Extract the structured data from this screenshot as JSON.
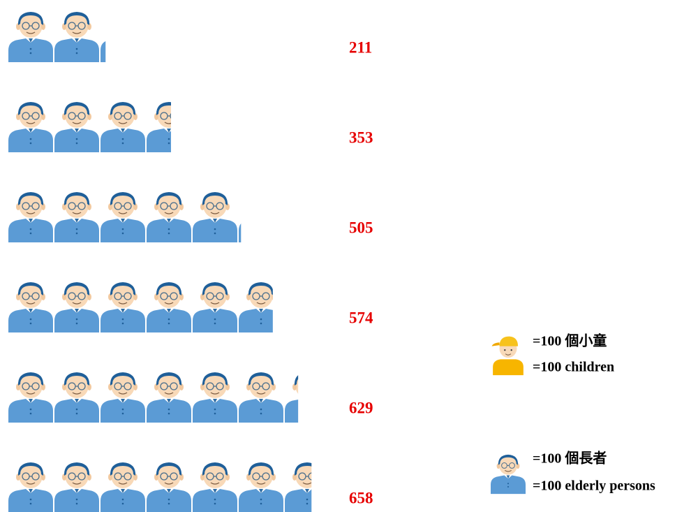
{
  "chart_data": {
    "type": "pictograph",
    "categories": [
      null,
      null,
      null,
      null,
      null,
      null
    ],
    "values": [
      211,
      353,
      505,
      574,
      629,
      658
    ],
    "icon_value": 100,
    "color": "#5b9bd5",
    "label_color": "#e60000",
    "legend": [
      [
        "=100 個小童",
        "=100 children"
      ],
      [
        "=100 個長者",
        "=100 elderly persons"
      ]
    ]
  }
}
